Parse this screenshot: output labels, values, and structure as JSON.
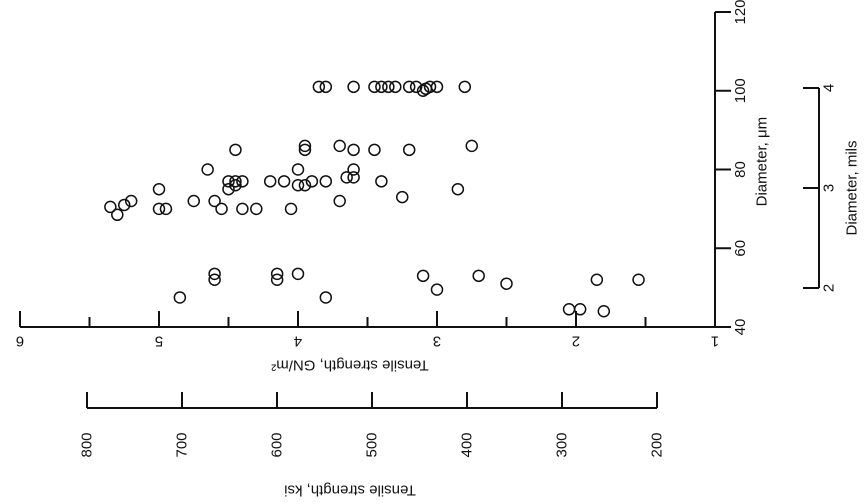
{
  "chart_data": {
    "type": "scatter",
    "orientation": "rotated",
    "axes": {
      "strength_gn": {
        "label": "Tensile strength, GN/m²",
        "range": [
          1,
          6
        ],
        "ticks": [
          "1",
          "2",
          "3",
          "4",
          "5",
          "6"
        ],
        "minor_ticks": [
          1.5,
          2.5,
          3.5,
          4.5,
          5.5
        ]
      },
      "strength_ksi": {
        "label": "Tensile strength, ksi",
        "ticks": [
          "800",
          "700",
          "600",
          "500",
          "400",
          "300",
          "200"
        ]
      },
      "diameter_um": {
        "label": "Diameter, μm",
        "range": [
          40,
          120
        ],
        "ticks": [
          "40",
          "60",
          "80",
          "100",
          "120"
        ]
      },
      "diameter_mils": {
        "label": "Diameter, mils",
        "ticks": [
          "2",
          "3",
          "4"
        ]
      }
    },
    "grid": false,
    "legend": "none",
    "points": [
      {
        "x": 101,
        "y": 3.85
      },
      {
        "x": 101,
        "y": 3.8
      },
      {
        "x": 101,
        "y": 3.6
      },
      {
        "x": 101,
        "y": 3.45
      },
      {
        "x": 101,
        "y": 3.4
      },
      {
        "x": 101,
        "y": 3.35
      },
      {
        "x": 101,
        "y": 3.3
      },
      {
        "x": 101,
        "y": 3.2
      },
      {
        "x": 101,
        "y": 3.15
      },
      {
        "x": 101,
        "y": 3.05
      },
      {
        "x": 101,
        "y": 3.0
      },
      {
        "x": 101,
        "y": 2.8
      },
      {
        "x": 100,
        "y": 3.1
      },
      {
        "x": 100.5,
        "y": 3.08
      },
      {
        "x": 86,
        "y": 3.95
      },
      {
        "x": 86,
        "y": 3.7
      },
      {
        "x": 86,
        "y": 2.75
      },
      {
        "x": 85,
        "y": 4.45
      },
      {
        "x": 85,
        "y": 3.95
      },
      {
        "x": 85,
        "y": 3.6
      },
      {
        "x": 85,
        "y": 3.45
      },
      {
        "x": 85,
        "y": 3.2
      },
      {
        "x": 80,
        "y": 4.65
      },
      {
        "x": 80,
        "y": 4.0
      },
      {
        "x": 80,
        "y": 3.6
      },
      {
        "x": 78,
        "y": 3.6
      },
      {
        "x": 78,
        "y": 3.65
      },
      {
        "x": 77,
        "y": 3.4
      },
      {
        "x": 77,
        "y": 4.5
      },
      {
        "x": 77,
        "y": 4.45
      },
      {
        "x": 77,
        "y": 4.4
      },
      {
        "x": 77,
        "y": 4.2
      },
      {
        "x": 77,
        "y": 4.1
      },
      {
        "x": 77,
        "y": 3.9
      },
      {
        "x": 77,
        "y": 3.8
      },
      {
        "x": 76,
        "y": 4.45
      },
      {
        "x": 76,
        "y": 4.0
      },
      {
        "x": 76,
        "y": 3.95
      },
      {
        "x": 75,
        "y": 5.0
      },
      {
        "x": 75,
        "y": 4.5
      },
      {
        "x": 75,
        "y": 2.85
      },
      {
        "x": 73,
        "y": 3.25
      },
      {
        "x": 72,
        "y": 5.2
      },
      {
        "x": 72,
        "y": 4.75
      },
      {
        "x": 72,
        "y": 4.6
      },
      {
        "x": 72,
        "y": 3.7
      },
      {
        "x": 71,
        "y": 5.25
      },
      {
        "x": 70.5,
        "y": 5.35
      },
      {
        "x": 70,
        "y": 5.0
      },
      {
        "x": 70,
        "y": 4.95
      },
      {
        "x": 70,
        "y": 4.55
      },
      {
        "x": 70,
        "y": 4.4
      },
      {
        "x": 70,
        "y": 4.3
      },
      {
        "x": 70,
        "y": 4.05
      },
      {
        "x": 68.5,
        "y": 5.3
      },
      {
        "x": 53.5,
        "y": 4.6
      },
      {
        "x": 53.5,
        "y": 4.15
      },
      {
        "x": 53.5,
        "y": 4.0
      },
      {
        "x": 53,
        "y": 3.1
      },
      {
        "x": 53,
        "y": 2.7
      },
      {
        "x": 52,
        "y": 4.6
      },
      {
        "x": 52,
        "y": 4.15
      },
      {
        "x": 52,
        "y": 1.85
      },
      {
        "x": 52,
        "y": 1.55
      },
      {
        "x": 51,
        "y": 2.5
      },
      {
        "x": 49.5,
        "y": 3.0
      },
      {
        "x": 47.5,
        "y": 4.85
      },
      {
        "x": 47.5,
        "y": 3.8
      },
      {
        "x": 44.5,
        "y": 2.05
      },
      {
        "x": 44.5,
        "y": 1.97
      },
      {
        "x": 44,
        "y": 1.8
      }
    ]
  }
}
